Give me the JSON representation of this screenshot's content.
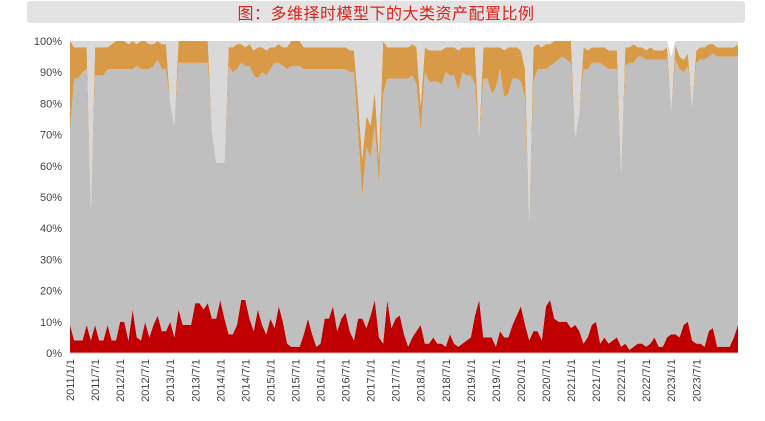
{
  "chart_data": {
    "type": "area",
    "stacked": true,
    "title": "图：多维择时模型下的大类资产配置比例",
    "y_unit": "percent",
    "ylim": [
      0,
      100
    ],
    "y_ticks": [
      "0%",
      "10%",
      "20%",
      "30%",
      "40%",
      "50%",
      "60%",
      "70%",
      "80%",
      "90%",
      "100%"
    ],
    "x_start": "2011-01",
    "x_end": "2023-12",
    "x_tick_labels": [
      "2011/1/1",
      "2011/7/1",
      "2012/1/1",
      "2012/7/1",
      "2013/1/1",
      "2013/7/1",
      "2014/1/1",
      "2014/7/1",
      "2015/1/1",
      "2015/7/1",
      "2016/1/1",
      "2016/7/1",
      "2017/1/1",
      "2017/7/1",
      "2018/1/1",
      "2018/7/1",
      "2019/1/1",
      "2019/7/1",
      "2020/1/1",
      "2020/7/1",
      "2021/1/1",
      "2021/7/1",
      "2022/1/1",
      "2022/7/1",
      "2023/1/1",
      "2023/7/1"
    ],
    "colors": {
      "series1": "#c00000",
      "series2": "#bfbfbf",
      "series3": "#d99a48",
      "series4": "#d9d9d9"
    },
    "series": [
      {
        "color_key": "series1",
        "values": [
          9,
          4,
          4,
          4,
          9,
          4,
          9,
          4,
          4,
          9,
          4,
          4,
          10,
          10,
          4,
          14,
          5,
          4,
          10,
          5,
          9,
          12,
          7,
          7,
          10,
          5,
          14,
          9,
          9,
          9,
          16,
          16,
          14,
          16,
          11,
          11,
          17,
          11,
          6,
          6,
          9,
          17,
          17,
          11,
          7,
          14,
          9,
          6,
          11,
          8,
          15,
          10,
          3,
          2,
          2,
          2,
          6,
          11,
          6,
          2,
          3,
          11,
          11,
          15,
          7,
          11,
          13,
          7,
          4,
          11,
          11,
          8,
          12,
          17,
          5,
          3,
          17,
          8,
          11,
          12,
          6,
          2,
          5,
          7,
          9,
          3,
          3,
          5,
          3,
          3,
          2,
          6,
          3,
          2,
          3,
          4,
          5,
          12,
          17,
          5,
          5,
          5,
          2,
          7,
          5,
          5,
          9,
          12,
          15,
          9,
          4,
          7,
          7,
          4,
          15,
          17,
          11,
          10,
          10,
          10,
          8,
          9,
          7,
          3,
          5,
          9,
          10,
          3,
          5,
          3,
          4,
          5,
          2,
          3,
          1,
          2,
          3,
          3,
          2,
          3,
          5,
          2,
          2,
          5,
          6,
          6,
          5,
          9,
          10,
          4,
          3,
          3,
          2,
          7,
          8,
          2,
          2,
          2,
          2,
          5,
          9
        ]
      },
      {
        "color_key": "series2",
        "values": [
          62,
          84,
          84,
          86,
          82,
          42,
          80,
          85,
          85,
          82,
          87,
          87,
          81,
          81,
          87,
          77,
          87,
          87,
          81,
          86,
          83,
          82,
          84,
          84,
          70,
          68,
          79,
          84,
          84,
          84,
          77,
          77,
          79,
          77,
          60,
          50,
          44,
          50,
          86,
          84,
          82,
          76,
          75,
          81,
          82,
          74,
          81,
          83,
          80,
          85,
          78,
          82,
          88,
          90,
          90,
          90,
          85,
          80,
          85,
          89,
          88,
          80,
          80,
          76,
          84,
          80,
          78,
          83,
          86,
          60,
          39,
          58,
          51,
          56,
          49,
          80,
          71,
          80,
          77,
          76,
          82,
          86,
          84,
          79,
          62,
          87,
          84,
          82,
          84,
          83,
          88,
          83,
          86,
          82,
          87,
          85,
          84,
          74,
          52,
          83,
          83,
          78,
          83,
          84,
          77,
          78,
          79,
          76,
          72,
          72,
          38,
          80,
          84,
          87,
          76,
          75,
          82,
          84,
          85,
          84,
          85,
          60,
          70,
          88,
          86,
          84,
          83,
          90,
          87,
          88,
          87,
          86,
          56,
          89,
          92,
          91,
          92,
          92,
          92,
          91,
          89,
          92,
          92,
          89,
          72,
          88,
          86,
          81,
          82,
          75,
          90,
          91,
          92,
          88,
          88,
          93,
          93,
          93,
          93,
          90,
          86
        ]
      },
      {
        "color_key": "series3",
        "values": [
          29,
          10,
          10,
          8,
          7,
          0,
          9,
          9,
          9,
          7,
          8,
          9,
          9,
          9,
          8,
          9,
          7,
          9,
          9,
          8,
          7,
          6,
          8,
          8,
          0,
          0,
          7,
          7,
          7,
          7,
          7,
          7,
          7,
          7,
          0,
          0,
          0,
          0,
          6,
          8,
          8,
          6,
          6,
          7,
          8,
          10,
          8,
          8,
          7,
          5,
          6,
          6,
          7,
          8,
          8,
          8,
          7,
          7,
          7,
          7,
          7,
          7,
          7,
          7,
          7,
          7,
          7,
          7,
          7,
          10,
          12,
          10,
          10,
          11,
          8,
          17,
          10,
          10,
          10,
          10,
          10,
          10,
          10,
          12,
          8,
          8,
          10,
          10,
          10,
          11,
          8,
          9,
          9,
          13,
          8,
          9,
          9,
          12,
          0,
          10,
          10,
          15,
          13,
          7,
          15,
          15,
          10,
          10,
          10,
          10,
          0,
          11,
          8,
          7,
          8,
          7,
          7,
          6,
          5,
          6,
          7,
          0,
          0,
          7,
          6,
          5,
          5,
          5,
          6,
          6,
          6,
          6,
          0,
          6,
          5,
          6,
          3,
          3,
          3,
          4,
          3,
          3,
          3,
          4,
          0,
          5,
          4,
          4,
          4,
          0,
          4,
          4,
          4,
          4,
          3,
          3,
          3,
          3,
          3,
          3,
          4
        ]
      },
      {
        "color_key": "series4",
        "values": [
          0,
          2,
          2,
          2,
          2,
          54,
          2,
          2,
          2,
          2,
          1,
          0,
          0,
          0,
          1,
          0,
          1,
          0,
          0,
          1,
          1,
          0,
          1,
          1,
          20,
          27,
          0,
          0,
          0,
          0,
          0,
          0,
          0,
          0,
          29,
          39,
          39,
          39,
          2,
          2,
          1,
          1,
          2,
          1,
          3,
          2,
          2,
          3,
          2,
          2,
          1,
          2,
          2,
          0,
          0,
          0,
          2,
          2,
          2,
          2,
          2,
          2,
          2,
          2,
          2,
          2,
          2,
          3,
          3,
          19,
          38,
          24,
          27,
          16,
          38,
          0,
          2,
          2,
          2,
          2,
          2,
          2,
          1,
          2,
          21,
          2,
          3,
          3,
          3,
          3,
          2,
          2,
          2,
          3,
          2,
          2,
          2,
          2,
          31,
          2,
          2,
          2,
          2,
          2,
          3,
          2,
          2,
          2,
          3,
          9,
          58,
          2,
          1,
          2,
          1,
          1,
          0,
          0,
          0,
          0,
          0,
          31,
          23,
          2,
          3,
          2,
          2,
          2,
          2,
          3,
          3,
          3,
          42,
          2,
          2,
          1,
          2,
          2,
          3,
          2,
          3,
          3,
          3,
          2,
          17,
          5,
          5,
          6,
          4,
          21,
          3,
          2,
          2,
          1,
          1,
          2,
          2,
          2,
          2,
          2,
          1
        ]
      }
    ],
    "grid": false,
    "legend": "none"
  }
}
